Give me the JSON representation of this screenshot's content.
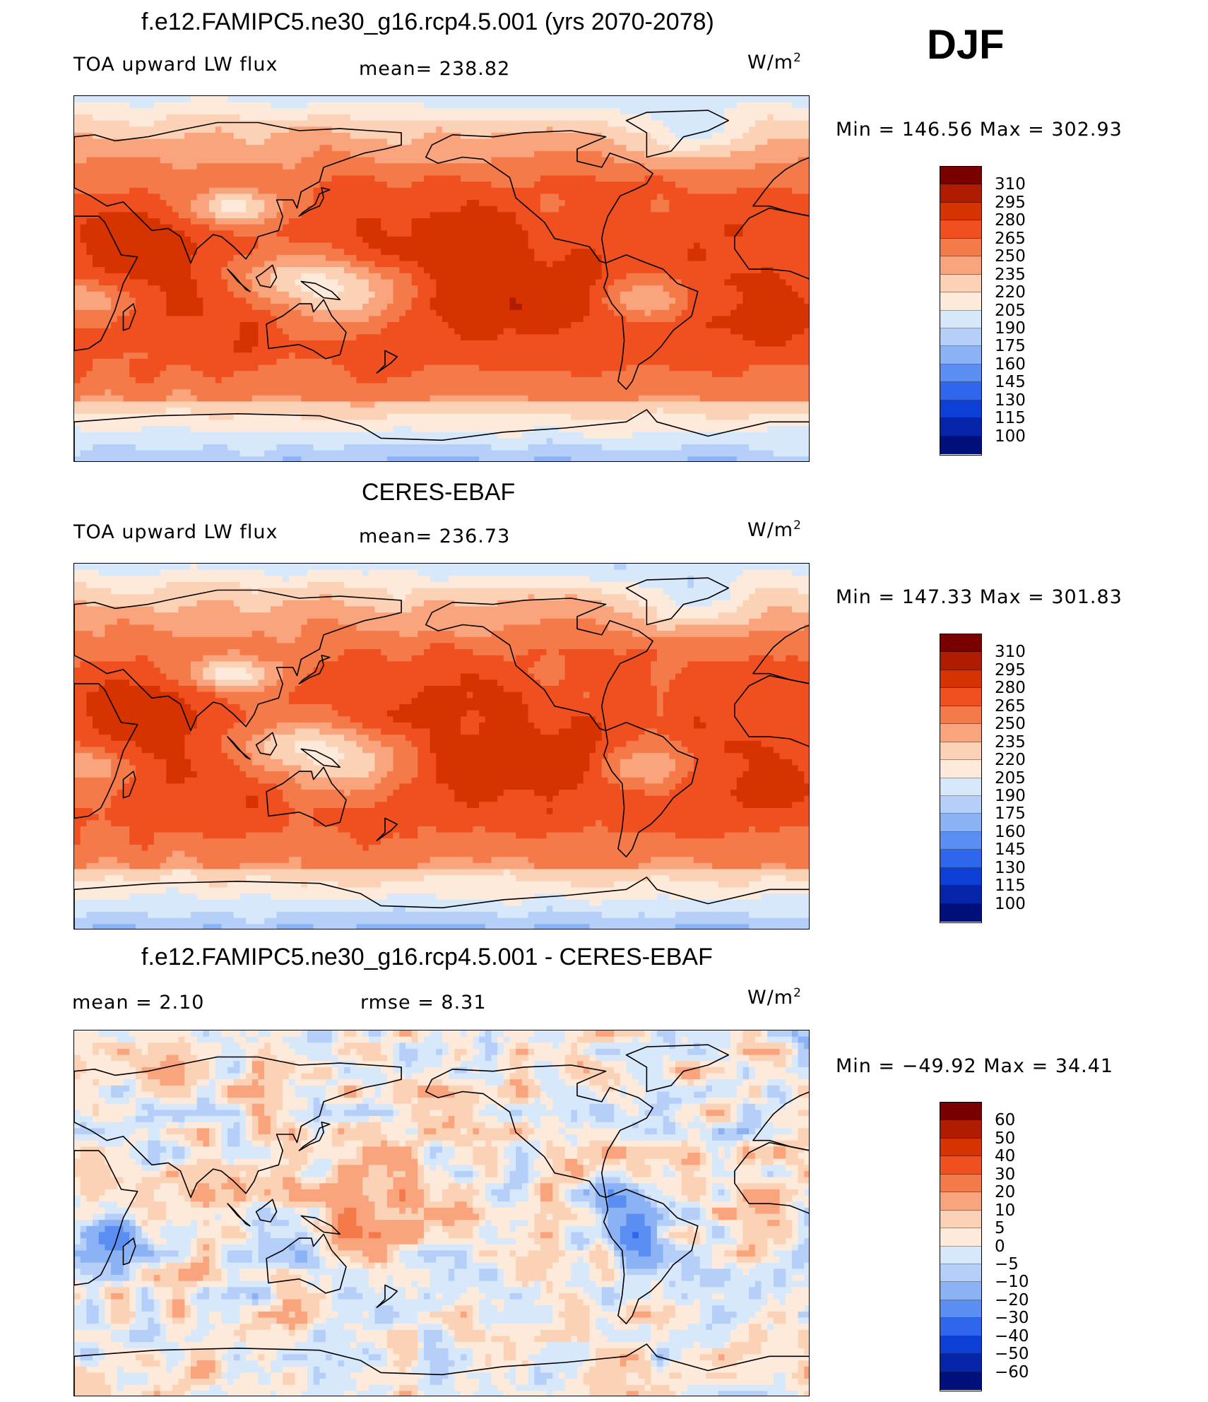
{
  "season": "DJF",
  "panels": [
    {
      "id": "model",
      "title": "f.e12.FAMIPC5.ne30_g16.rcp4.5.001 (yrs 2070-2078)",
      "left_label": "TOA upward LW flux",
      "stat_label": "mean=  238.82",
      "units_base": "W/m",
      "units_exp": "2",
      "minmax": "Min  =  146.56  Max  =  302.93",
      "colorbar_ticks": [
        "310",
        "295",
        "280",
        "265",
        "250",
        "235",
        "220",
        "205",
        "190",
        "175",
        "160",
        "145",
        "130",
        "115",
        "100"
      ]
    },
    {
      "id": "obs",
      "title": "CERES-EBAF",
      "left_label": "TOA upward LW flux",
      "stat_label": "mean=  236.73",
      "units_base": "W/m",
      "units_exp": "2",
      "minmax": "Min  =  147.33  Max  =  301.83",
      "colorbar_ticks": [
        "310",
        "295",
        "280",
        "265",
        "250",
        "235",
        "220",
        "205",
        "190",
        "175",
        "160",
        "145",
        "130",
        "115",
        "100"
      ]
    },
    {
      "id": "diff",
      "title": "f.e12.FAMIPC5.ne30_g16.rcp4.5.001 - CERES-EBAF",
      "left_label": "mean  =      2.10",
      "stat_label": "rmse  =      8.31",
      "units_base": "W/m",
      "units_exp": "2",
      "minmax": "Min  =  −49.92  Max  =    34.41",
      "colorbar_ticks": [
        "60",
        "50",
        "40",
        "30",
        "20",
        "10",
        "5",
        "0",
        "−5",
        "−10",
        "−20",
        "−30",
        "−40",
        "−50",
        "−60"
      ]
    }
  ],
  "colors": {
    "palette": [
      "#7a0000",
      "#b01c00",
      "#d63300",
      "#f05020",
      "#f57a4a",
      "#f9a47c",
      "#fcd2b6",
      "#fdeadb",
      "#d8e8fb",
      "#b5cff8",
      "#8bb2f5",
      "#5a8ef2",
      "#2e66ee",
      "#0d3fd6",
      "#0625a8",
      "#00107a"
    ],
    "land_outline": "#000000"
  }
}
